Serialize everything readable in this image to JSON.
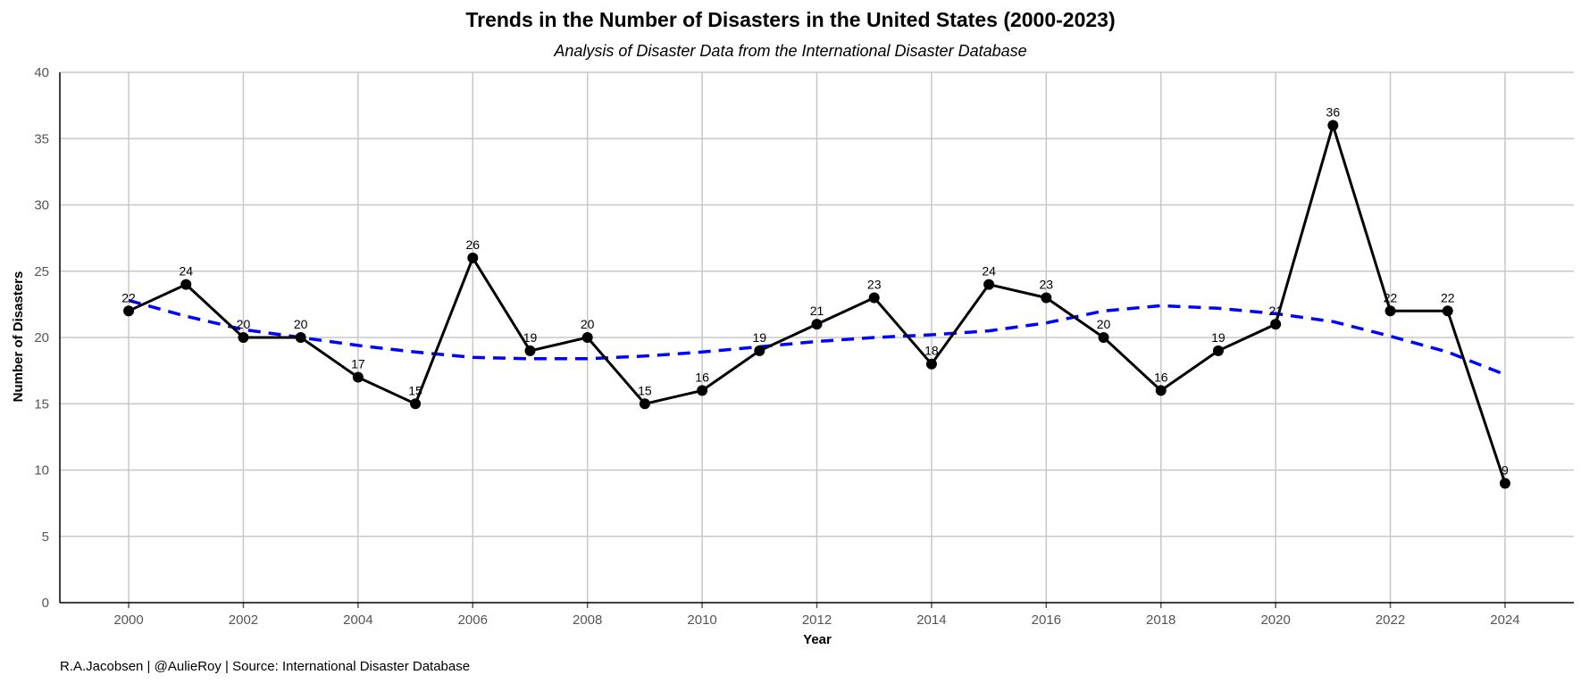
{
  "chart_data": {
    "type": "line",
    "title": "Trends in the Number of Disasters in the United States (2000-2023)",
    "subtitle": "Analysis of Disaster Data from the International Disaster Database",
    "xlabel": "Year",
    "ylabel": "Number of Disasters",
    "caption": "R.A.Jacobsen | @AulieRoy | Source: International Disaster Database",
    "xlim": [
      1998.8,
      2025.2
    ],
    "ylim": [
      0,
      40
    ],
    "x_ticks": [
      2000,
      2002,
      2004,
      2006,
      2008,
      2010,
      2012,
      2014,
      2016,
      2018,
      2020,
      2022,
      2024
    ],
    "y_ticks": [
      0,
      5,
      10,
      15,
      20,
      25,
      30,
      35,
      40
    ],
    "grid": true,
    "legend": "none",
    "series": [
      {
        "style": "solid",
        "color": "#000000",
        "markers": true,
        "data_labels": true,
        "x": [
          2000,
          2001,
          2002,
          2003,
          2004,
          2005,
          2006,
          2007,
          2008,
          2009,
          2010,
          2011,
          2012,
          2013,
          2014,
          2015,
          2016,
          2017,
          2018,
          2019,
          2020,
          2021,
          2022,
          2023,
          2024
        ],
        "y": [
          22,
          24,
          20,
          20,
          17,
          15,
          26,
          19,
          20,
          15,
          16,
          19,
          21,
          23,
          18,
          24,
          23,
          20,
          16,
          19,
          21,
          36,
          22,
          22,
          9
        ]
      },
      {
        "style": "dashed",
        "color": "#0000ff",
        "markers": false,
        "data_labels": false,
        "x": [
          2000,
          2001,
          2002,
          2003,
          2004,
          2005,
          2006,
          2007,
          2008,
          2009,
          2010,
          2011,
          2012,
          2013,
          2014,
          2015,
          2016,
          2017,
          2018,
          2019,
          2020,
          2021,
          2022,
          2023,
          2024
        ],
        "y": [
          22.8,
          21.6,
          20.6,
          20.0,
          19.4,
          18.9,
          18.5,
          18.4,
          18.4,
          18.6,
          18.9,
          19.3,
          19.7,
          20.0,
          20.2,
          20.5,
          21.1,
          22.0,
          22.4,
          22.2,
          21.8,
          21.2,
          20.1,
          18.9,
          17.2
        ]
      }
    ]
  }
}
